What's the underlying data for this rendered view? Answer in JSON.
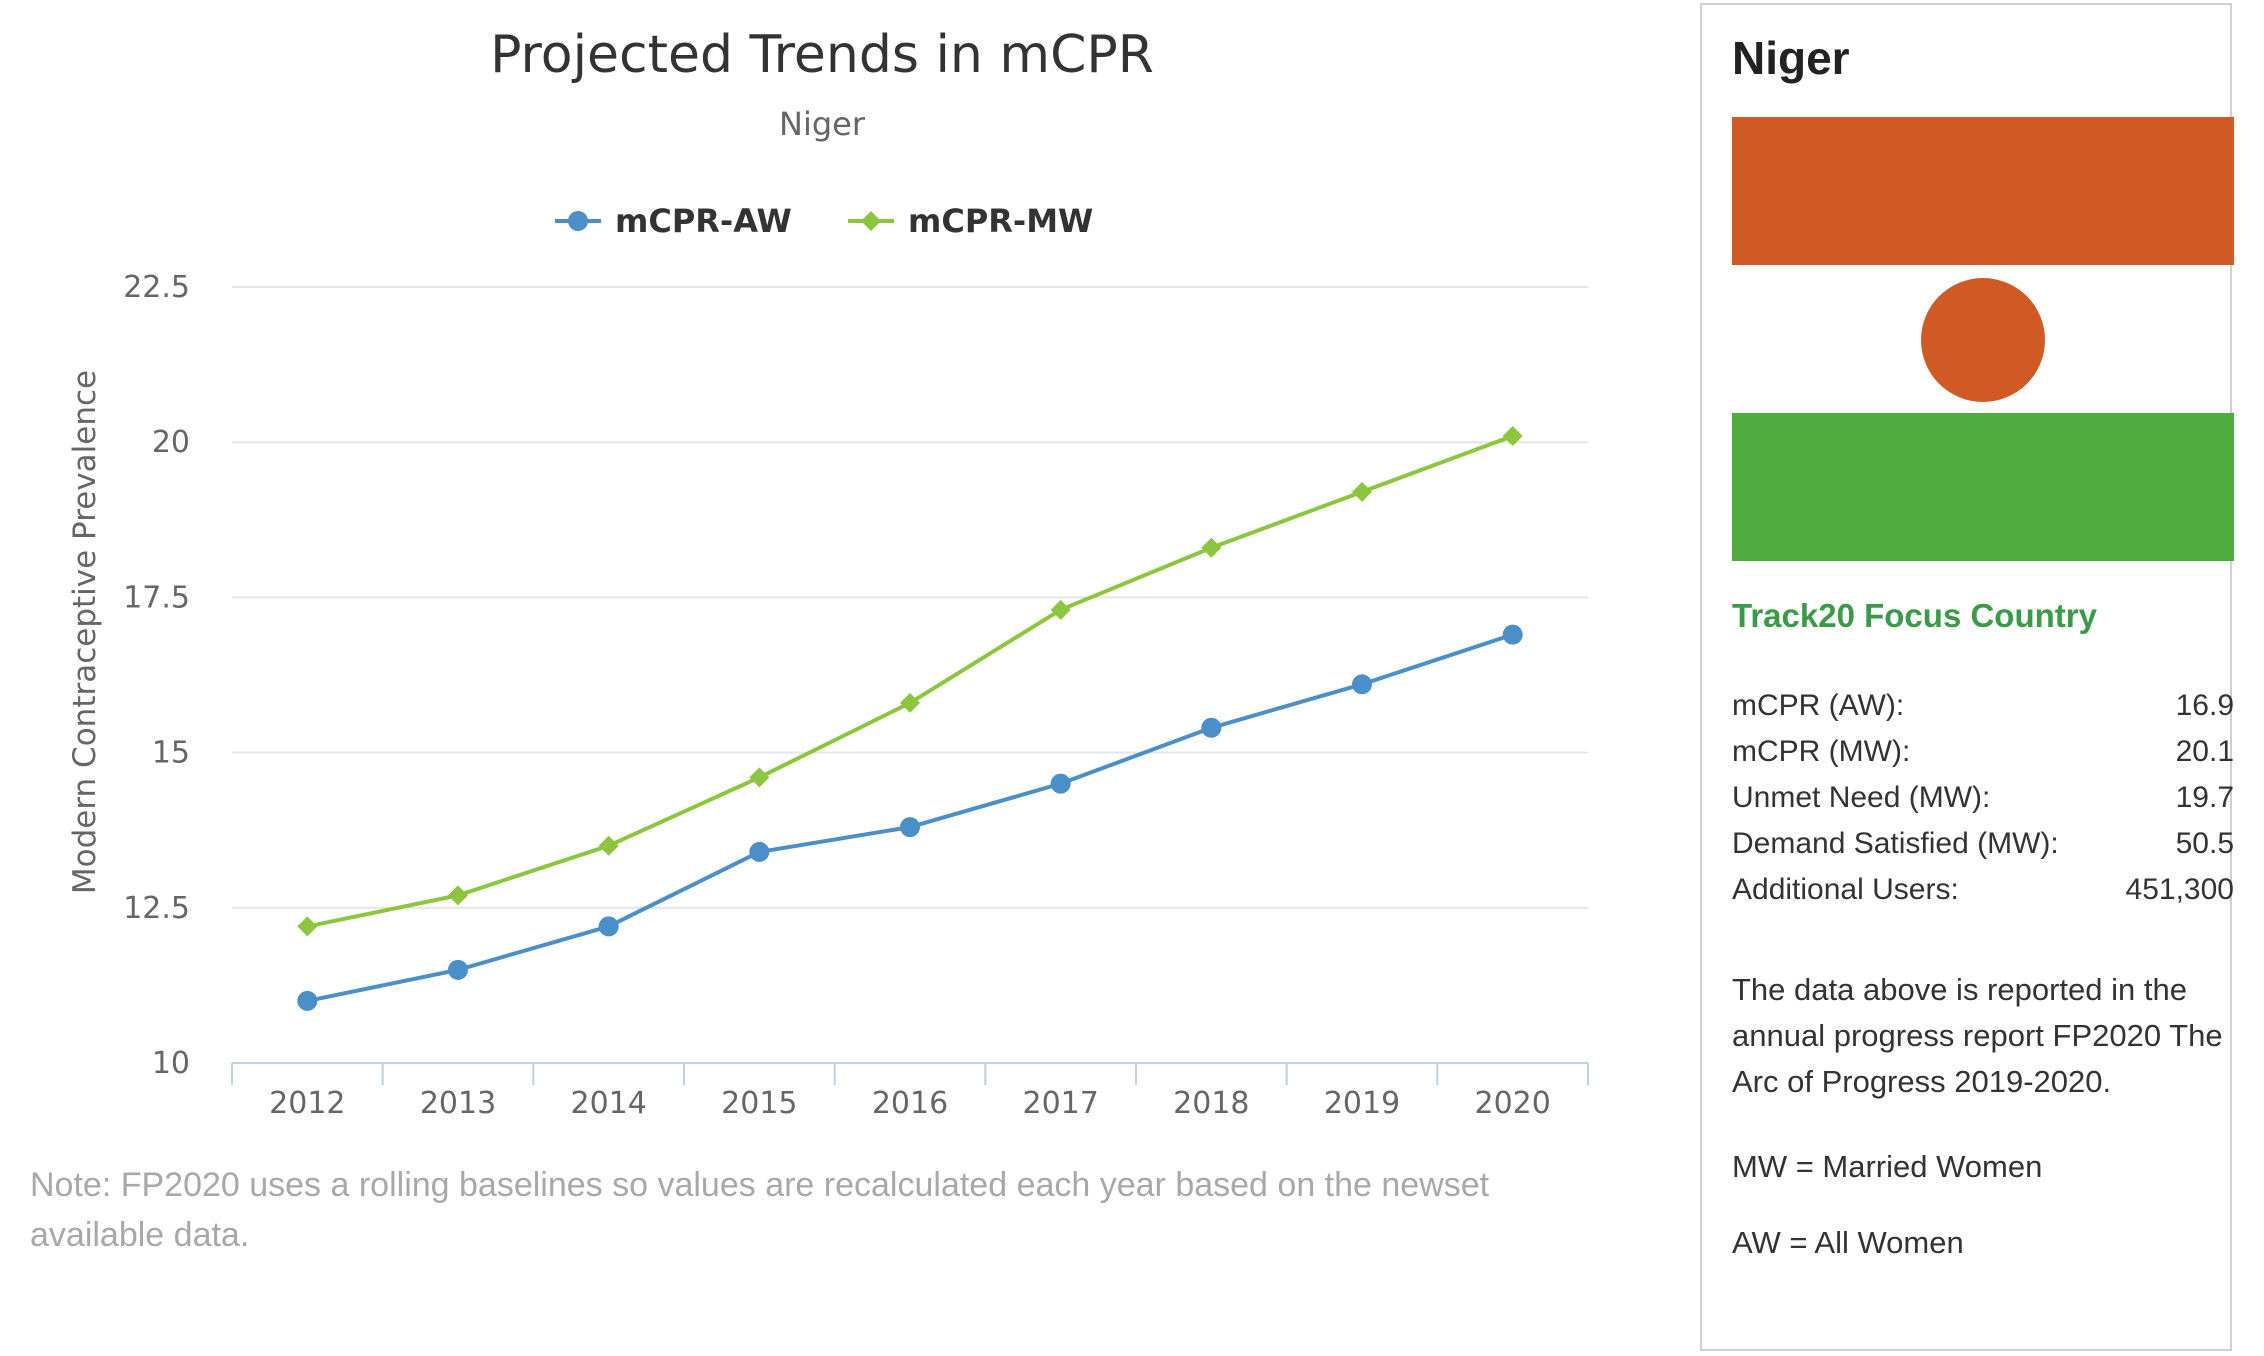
{
  "chart_data": {
    "type": "line",
    "title": "Projected Trends in mCPR",
    "subtitle": "Niger",
    "ylabel": "Modern Contraceptive Prevalence",
    "xlabel": "",
    "categories": [
      "2012",
      "2013",
      "2014",
      "2015",
      "2016",
      "2017",
      "2018",
      "2019",
      "2020"
    ],
    "y_ticks": [
      "10",
      "12.5",
      "15",
      "17.5",
      "20",
      "22.5"
    ],
    "ylim": [
      10,
      22.5
    ],
    "grid": true,
    "legend_position": "top",
    "series": [
      {
        "name": "mCPR-AW",
        "color": "#4a8fc8",
        "marker": "circle",
        "values": [
          11.0,
          11.5,
          12.2,
          13.4,
          13.8,
          14.5,
          15.4,
          16.1,
          16.9
        ]
      },
      {
        "name": "mCPR-MW",
        "color": "#8cc63f",
        "marker": "diamond",
        "values": [
          12.2,
          12.7,
          13.5,
          14.6,
          15.8,
          17.3,
          18.3,
          19.2,
          20.1
        ]
      }
    ]
  },
  "note": "Note: FP2020 uses a rolling baselines so values are recalculated each year based on the newset available data.",
  "panel": {
    "country": "Niger",
    "flag": {
      "top_color": "#d05a26",
      "middle_color": "#ffffff",
      "circle_color": "#d05a26",
      "bottom_color": "#4fad3f"
    },
    "focus_label": "Track20 Focus Country",
    "stats": [
      {
        "label": "mCPR (AW):",
        "value": "16.9"
      },
      {
        "label": "mCPR (MW):",
        "value": "20.1"
      },
      {
        "label": "Unmet Need (MW):",
        "value": "19.7"
      },
      {
        "label": "Demand Satisfied (MW):",
        "value": "50.5"
      },
      {
        "label": "Additional Users:",
        "value": "451,300"
      }
    ],
    "description": "The data above is reported in the annual progress report FP2020 The Arc of Progress 2019-2020.",
    "abbr_mw": "MW = Married Women",
    "abbr_aw": "AW = All Women"
  }
}
